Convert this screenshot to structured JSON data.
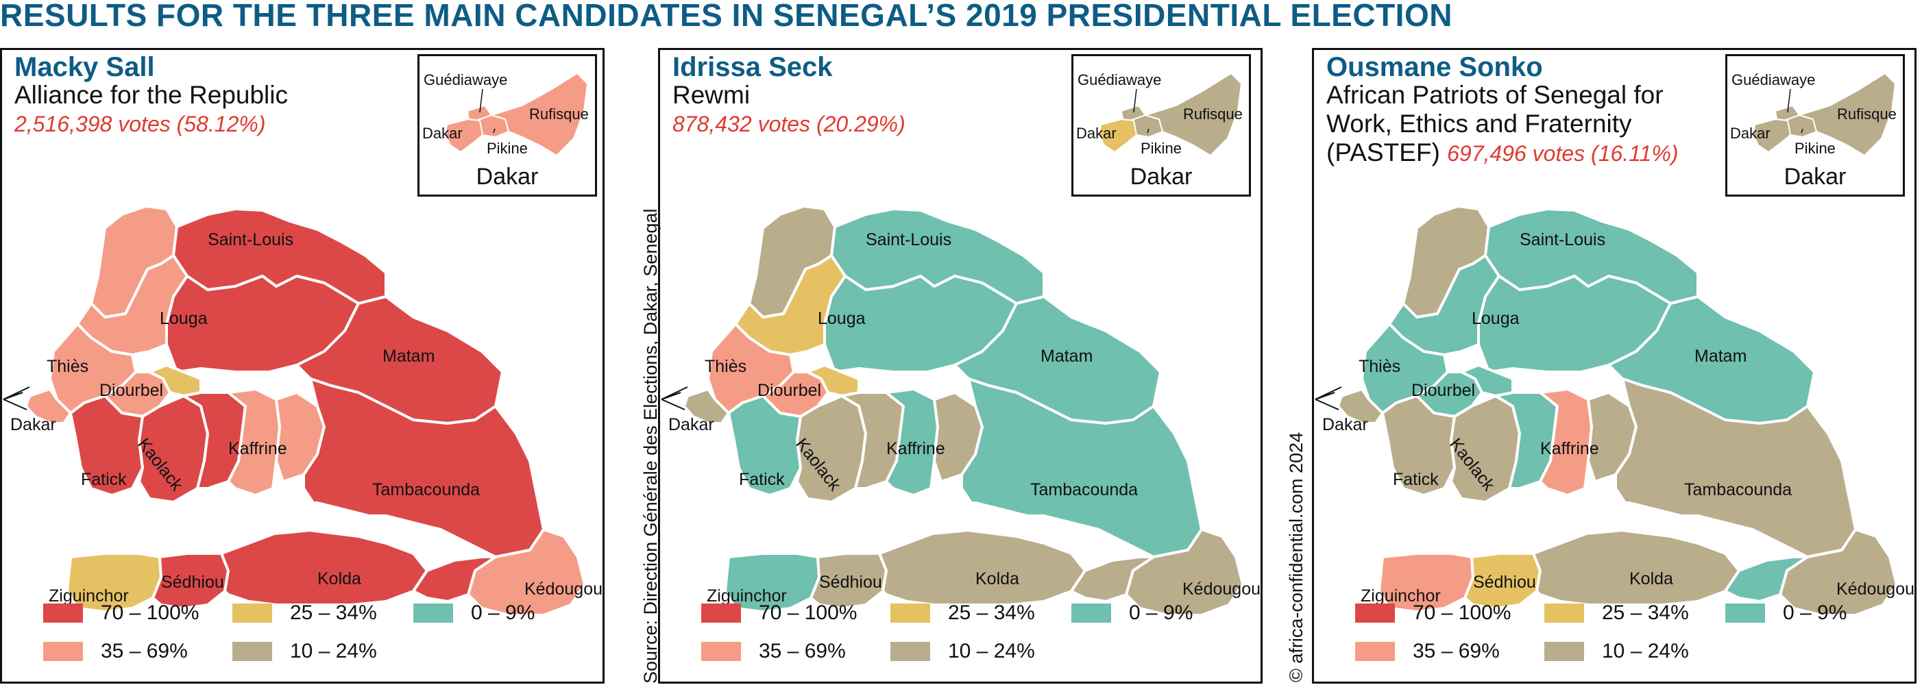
{
  "title": "RESULTS FOR THE THREE MAIN CANDIDATES IN SENEGAL’S 2019 PRESIDENTIAL ELECTION",
  "source": "Source: Direction Générale des Elections, Dakar, Senegal",
  "copyright": "© africa-confidential.com 2024",
  "colors": {
    "c70_100": "#dc4848",
    "c35_69": "#f59c86",
    "c25_34": "#e6c164",
    "c10_24": "#b9ad8c",
    "c0_9": "#6fc0ae"
  },
  "legend": [
    {
      "key": "c70_100",
      "label": "70 – 100%"
    },
    {
      "key": "c25_34",
      "label": "25 – 34%"
    },
    {
      "key": "c0_9",
      "label": "0 – 9%"
    },
    {
      "key": "c35_69",
      "label": "35 – 69%"
    },
    {
      "key": "c10_24",
      "label": "10 – 24%"
    }
  ],
  "inset": {
    "title": "Dakar",
    "labels": [
      "Guédiawaye",
      "Rufisque",
      "Dakar",
      "Pikine"
    ]
  },
  "regions": {
    "saint_louis": "Saint-Louis",
    "louga": "Louga",
    "matam": "Matam",
    "thies": "Thiès",
    "diourbel": "Diourbel",
    "dakar": "Dakar",
    "kaffrine": "Kaffrine",
    "fatick": "Fatick",
    "kaolack": "Kaolack",
    "tambacounda": "Tambacounda",
    "ziguinchor": "Ziguinchor",
    "sedhiou": "Sédhiou",
    "kolda": "Kolda",
    "kedougou": "Kédougou"
  },
  "candidates": [
    {
      "name": "Macky Sall",
      "party_lines": [
        "Alliance for the Republic"
      ],
      "votes": "2,516,398 votes (58.12%)",
      "votes_inline": false,
      "inset_colors": {
        "guediawaye": "c35_69",
        "rufisque": "c35_69",
        "dakar": "c35_69",
        "pikine": "c35_69"
      },
      "region_colors": {
        "saint_louis_west": "c35_69",
        "saint_louis_east": "c70_100",
        "louga_west": "c35_69",
        "louga_east": "c70_100",
        "matam": "c70_100",
        "thies": "c35_69",
        "diourbel": "c35_69",
        "diourbel_east": "c25_34",
        "dakar": "c35_69",
        "fatick": "c70_100",
        "kaolack": "c70_100",
        "kaffrine_west": "c70_100",
        "kaffrine_east": "c35_69",
        "tamba_north": "c35_69",
        "tamba": "c70_100",
        "ziguinchor": "c25_34",
        "sedhiou": "c70_100",
        "kolda": "c70_100",
        "kedougou": "c35_69",
        "kedougou_west": "c70_100"
      }
    },
    {
      "name": "Idrissa Seck",
      "party_lines": [
        "Rewmi"
      ],
      "votes": "878,432 votes (20.29%)",
      "votes_inline": false,
      "inset_colors": {
        "guediawaye": "c10_24",
        "rufisque": "c10_24",
        "dakar": "c25_34",
        "pikine": "c10_24"
      },
      "region_colors": {
        "saint_louis_west": "c10_24",
        "saint_louis_east": "c0_9",
        "louga_west": "c25_34",
        "louga_east": "c0_9",
        "matam": "c0_9",
        "thies": "c35_69",
        "diourbel": "c35_69",
        "diourbel_east": "c25_34",
        "dakar": "c10_24",
        "fatick": "c0_9",
        "kaolack": "c10_24",
        "kaffrine_west": "c10_24",
        "kaffrine_east": "c0_9",
        "tamba_north": "c10_24",
        "tamba": "c0_9",
        "ziguinchor": "c0_9",
        "sedhiou": "c10_24",
        "kolda": "c10_24",
        "kedougou": "c10_24",
        "kedougou_west": "c10_24"
      }
    },
    {
      "name": "Ousmane Sonko",
      "party_lines": [
        "African Patriots of Senegal for",
        "Work, Ethics and Fraternity"
      ],
      "party_prefix_last": "(PASTEF) ",
      "votes": "697,496 votes (16.11%)",
      "votes_inline": true,
      "inset_colors": {
        "guediawaye": "c10_24",
        "rufisque": "c10_24",
        "dakar": "c10_24",
        "pikine": "c10_24"
      },
      "region_colors": {
        "saint_louis_west": "c10_24",
        "saint_louis_east": "c0_9",
        "louga_west": "c0_9",
        "louga_east": "c0_9",
        "matam": "c0_9",
        "thies": "c0_9",
        "diourbel": "c0_9",
        "diourbel_east": "c0_9",
        "dakar": "c10_24",
        "fatick": "c10_24",
        "kaolack": "c10_24",
        "kaffrine_west": "c0_9",
        "kaffrine_east": "c35_69",
        "tamba_north": "c10_24",
        "tamba": "c10_24",
        "ziguinchor": "c35_69",
        "sedhiou": "c25_34",
        "kolda": "c10_24",
        "kedougou": "c10_24",
        "kedougou_west": "c0_9"
      }
    }
  ]
}
